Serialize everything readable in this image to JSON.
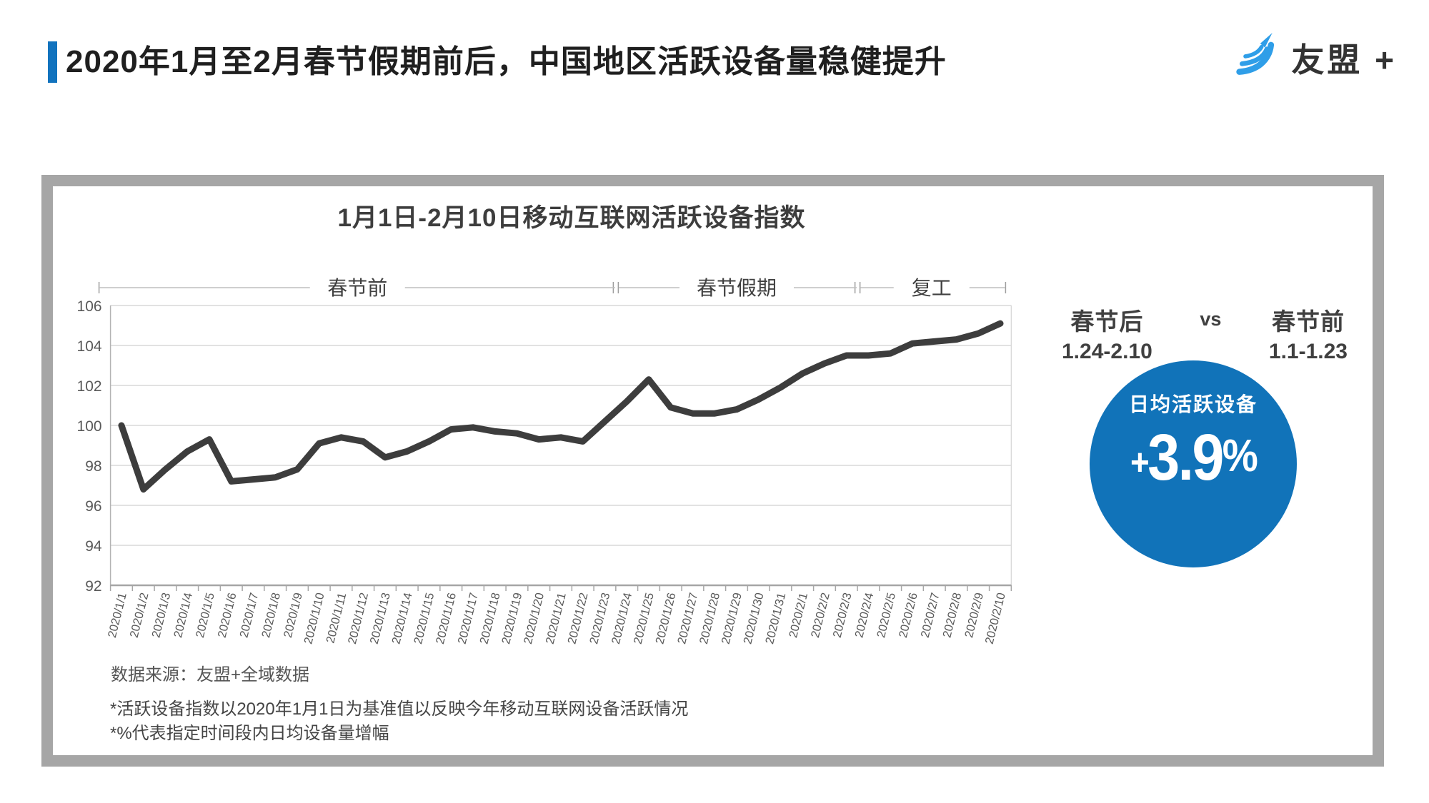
{
  "header": {
    "title": "2020年1月至2月春节假期前后，中国地区活跃设备量稳健提升",
    "logo_text": "友盟 +"
  },
  "chart": {
    "title": "1月1日-2月10日移动互联网活跃设备指数",
    "source": "数据来源：友盟+全域数据",
    "footnote1": "*活跃设备指数以2020年1月1日为基准值以反映今年移动互联网设备活跃情况",
    "footnote2": "*%代表指定时间段内日均设备量增幅"
  },
  "chart_data": {
    "type": "line",
    "title": "1月1日-2月10日移动互联网活跃设备指数",
    "categories": [
      "2020/1/1",
      "2020/1/2",
      "2020/1/3",
      "2020/1/4",
      "2020/1/5",
      "2020/1/6",
      "2020/1/7",
      "2020/1/8",
      "2020/1/9",
      "2020/1/10",
      "2020/1/11",
      "2020/1/12",
      "2020/1/13",
      "2020/1/14",
      "2020/1/15",
      "2020/1/16",
      "2020/1/17",
      "2020/1/18",
      "2020/1/19",
      "2020/1/20",
      "2020/1/21",
      "2020/1/22",
      "2020/1/23",
      "2020/1/24",
      "2020/1/25",
      "2020/1/26",
      "2020/1/27",
      "2020/1/28",
      "2020/1/29",
      "2020/1/30",
      "2020/1/31",
      "2020/2/1",
      "2020/2/2",
      "2020/2/3",
      "2020/2/4",
      "2020/2/5",
      "2020/2/6",
      "2020/2/7",
      "2020/2/8",
      "2020/2/9",
      "2020/2/10"
    ],
    "values": [
      100.0,
      96.8,
      97.8,
      98.7,
      99.3,
      97.2,
      97.3,
      97.4,
      97.8,
      99.1,
      99.4,
      99.2,
      98.4,
      98.7,
      99.2,
      99.8,
      99.9,
      99.7,
      99.6,
      99.3,
      99.4,
      99.2,
      100.2,
      101.2,
      102.3,
      100.9,
      100.6,
      100.6,
      100.8,
      101.3,
      101.9,
      102.6,
      103.1,
      103.5,
      103.5,
      103.6,
      104.1,
      104.2,
      104.3,
      104.6,
      105.1
    ],
    "ylim": [
      92,
      106
    ],
    "ytick_step": 2,
    "grid": true,
    "line_color": "#3d3d3d",
    "sections": [
      {
        "label": "春节前",
        "from": "2020/1/1",
        "to": "2020/1/23"
      },
      {
        "label": "春节假期",
        "from": "2020/1/24",
        "to": "2020/2/3"
      },
      {
        "label": "复工",
        "from": "2020/2/4",
        "to": "2020/2/10"
      }
    ]
  },
  "panel": {
    "after_label": "春节后",
    "after_range": "1.24-2.10",
    "vs": "vs",
    "before_label": "春节前",
    "before_range": "1.1-1.23",
    "circle_title": "日均活跃设备",
    "circle_value": "+3.9%",
    "circle_color": "#1173b9"
  }
}
